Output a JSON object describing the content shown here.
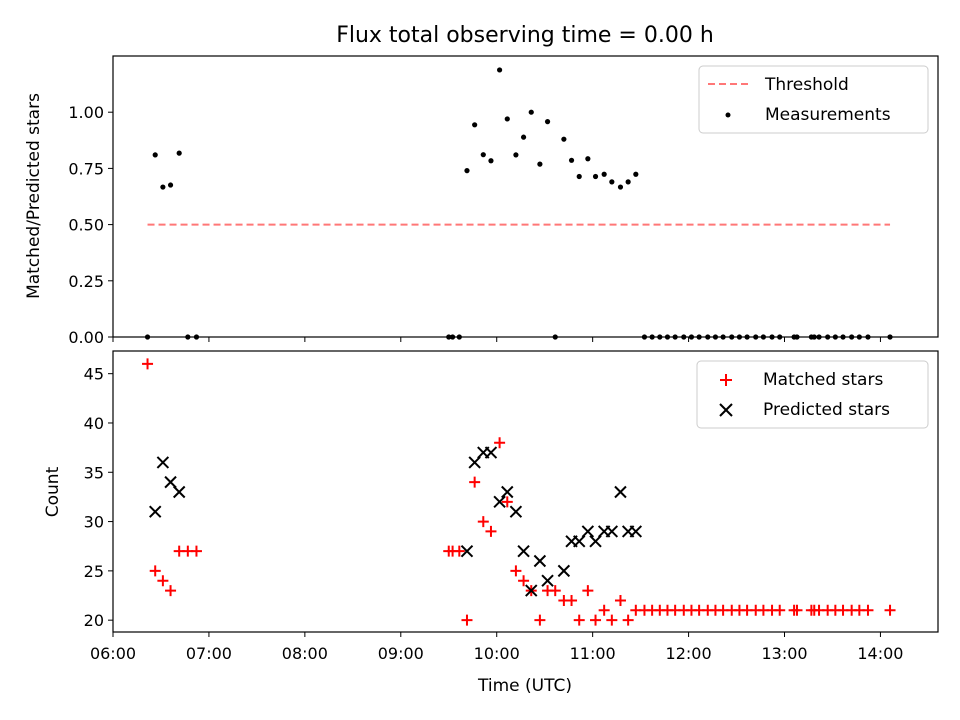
{
  "chart_data": [
    {
      "type": "scatter",
      "panel": "top",
      "title": "Flux total observing time = 0.00 h",
      "xlabel": "",
      "ylabel": "Matched/Predicted stars",
      "xlim": [
        6.0,
        14.6
      ],
      "ylim": [
        0,
        1.25
      ],
      "yticks": [
        0.0,
        0.25,
        0.5,
        0.75,
        1.0
      ],
      "ytick_labels": [
        "0.00",
        "0.25",
        "0.50",
        "0.75",
        "1.00"
      ],
      "grid": false,
      "legend": {
        "placement": "top-right",
        "entries": [
          "Threshold",
          "Measurements"
        ]
      },
      "series": [
        {
          "name": "Threshold",
          "kind": "dashed-line",
          "color": "#ff7777",
          "x": [
            6.36,
            14.1
          ],
          "y": [
            0.5,
            0.5
          ]
        },
        {
          "name": "Measurements",
          "kind": "dot",
          "color": "#000000",
          "x": [
            6.36,
            6.44,
            6.52,
            6.6,
            6.69,
            6.78,
            6.87,
            9.5,
            9.54,
            9.61,
            9.69,
            9.77,
            9.86,
            9.94,
            10.03,
            10.11,
            10.2,
            10.28,
            10.36,
            10.45,
            10.53,
            10.61,
            10.7,
            10.78,
            10.86,
            10.95,
            11.03,
            11.12,
            11.2,
            11.29,
            11.37,
            11.45,
            11.54,
            11.62,
            11.7,
            11.78,
            11.86,
            11.95,
            12.03,
            12.11,
            12.2,
            12.28,
            12.36,
            12.45,
            12.53,
            12.61,
            12.7,
            12.78,
            12.87,
            12.95,
            13.1,
            13.13,
            13.28,
            13.31,
            13.36,
            13.45,
            13.53,
            13.61,
            13.7,
            13.78,
            13.87,
            14.1
          ],
          "y": [
            0.0,
            0.81,
            0.667,
            0.676,
            0.818,
            0.0,
            0.0,
            0.0,
            0.0,
            0.0,
            0.74,
            0.944,
            0.811,
            0.784,
            1.188,
            0.97,
            0.81,
            0.889,
            1.0,
            0.769,
            0.958,
            0.0,
            0.88,
            0.786,
            0.714,
            0.793,
            0.714,
            0.724,
            0.69,
            0.667,
            0.69,
            0.724,
            0.0,
            0.0,
            0.0,
            0.0,
            0.0,
            0.0,
            0.0,
            0.0,
            0.0,
            0.0,
            0.0,
            0.0,
            0.0,
            0.0,
            0.0,
            0.0,
            0.0,
            0.0,
            0.0,
            0.0,
            0.0,
            0.0,
            0.0,
            0.0,
            0.0,
            0.0,
            0.0,
            0.0,
            0.0,
            0.0
          ]
        }
      ]
    },
    {
      "type": "scatter",
      "panel": "bottom",
      "title": "",
      "xlabel": "Time (UTC)",
      "ylabel": "Count",
      "xlim": [
        6.0,
        14.6
      ],
      "ylim": [
        18.8,
        47.3
      ],
      "xticks": [
        6,
        7,
        8,
        9,
        10,
        11,
        12,
        13,
        14
      ],
      "xtick_labels": [
        "06:00",
        "07:00",
        "08:00",
        "09:00",
        "10:00",
        "11:00",
        "12:00",
        "13:00",
        "14:00"
      ],
      "yticks": [
        20,
        25,
        30,
        35,
        40,
        45
      ],
      "ytick_labels": [
        "20",
        "25",
        "30",
        "35",
        "40",
        "45"
      ],
      "grid": false,
      "legend": {
        "placement": "top-right",
        "entries": [
          "Matched stars",
          "Predicted stars"
        ]
      },
      "series": [
        {
          "name": "Matched stars",
          "marker": "plus",
          "color": "#ff0000",
          "x": [
            6.36,
            6.44,
            6.52,
            6.6,
            6.69,
            6.78,
            6.87,
            9.5,
            9.54,
            9.61,
            9.69,
            9.77,
            9.86,
            9.94,
            10.03,
            10.11,
            10.2,
            10.28,
            10.36,
            10.45,
            10.53,
            10.61,
            10.7,
            10.78,
            10.86,
            10.95,
            11.03,
            11.12,
            11.2,
            11.29,
            11.37,
            11.45,
            11.54,
            11.62,
            11.7,
            11.78,
            11.86,
            11.95,
            12.03,
            12.11,
            12.2,
            12.28,
            12.36,
            12.45,
            12.53,
            12.61,
            12.7,
            12.78,
            12.87,
            12.95,
            13.1,
            13.13,
            13.28,
            13.31,
            13.36,
            13.45,
            13.53,
            13.61,
            13.7,
            13.78,
            13.87,
            14.1
          ],
          "y": [
            46,
            25,
            24,
            23,
            27,
            27,
            27,
            27,
            27,
            27,
            20,
            34,
            30,
            29,
            38,
            32,
            25,
            24,
            23,
            20,
            23,
            23,
            22,
            22,
            20,
            23,
            20,
            21,
            20,
            22,
            20,
            21,
            21,
            21,
            21,
            21,
            21,
            21,
            21,
            21,
            21,
            21,
            21,
            21,
            21,
            21,
            21,
            21,
            21,
            21,
            21,
            21,
            21,
            21,
            21,
            21,
            21,
            21,
            21,
            21,
            21,
            21
          ]
        },
        {
          "name": "Predicted stars",
          "marker": "x",
          "color": "#000000",
          "x": [
            6.44,
            6.52,
            6.6,
            6.69,
            9.69,
            9.77,
            9.86,
            9.94,
            10.03,
            10.11,
            10.2,
            10.28,
            10.36,
            10.45,
            10.53,
            10.7,
            10.78,
            10.86,
            10.95,
            11.03,
            11.12,
            11.2,
            11.29,
            11.37,
            11.45
          ],
          "y": [
            31,
            36,
            34,
            33,
            27,
            36,
            37,
            37,
            32,
            33,
            31,
            27,
            23,
            26,
            24,
            25,
            28,
            28,
            29,
            28,
            29,
            29,
            33,
            29,
            29
          ]
        }
      ]
    }
  ]
}
